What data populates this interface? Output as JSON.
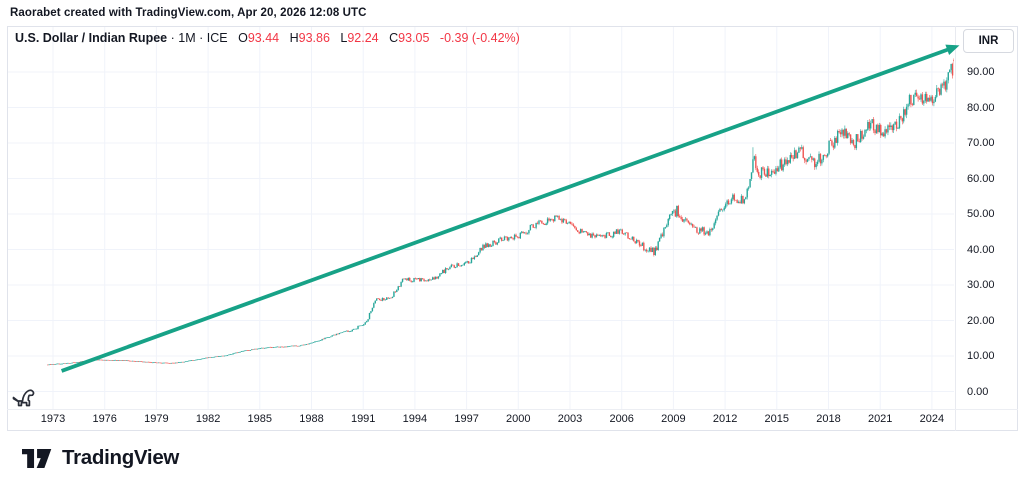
{
  "attribution": "Raorabet created with TradingView.com, Apr 20, 2026 12:08 UTC",
  "header": {
    "symbol": "U.S. Dollar / Indian Rupee",
    "dot": "·",
    "interval": "1M",
    "exchange": "ICE",
    "open_label": "O",
    "open_value": "93.44",
    "high_label": "H",
    "high_value": "93.86",
    "low_label": "L",
    "low_value": "92.24",
    "close_label": "C",
    "close_value": "93.05",
    "change_text": "-0.39 (-0.42%)"
  },
  "price_scale": {
    "currency_button": "INR"
  },
  "footer": {
    "brand": "TradingView"
  },
  "colors": {
    "up": "#26a69a",
    "down": "#ef5350",
    "arrow": "#17a287",
    "grid": "#f0f3fa",
    "border": "#e0e3eb",
    "text": "#131722",
    "value_red": "#f23645"
  },
  "chart_data": {
    "type": "candlestick",
    "title": "U.S. Dollar / Indian Rupee, 1M, ICE",
    "ylabel": "INR per USD",
    "x_visible_range": [
      1972.7,
      2025.31
    ],
    "ylim": [
      0,
      97
    ],
    "y_ticks": [
      0,
      10,
      20,
      30,
      40,
      50,
      60,
      70,
      80,
      90
    ],
    "x_ticks": [
      1973,
      1976,
      1979,
      1982,
      1985,
      1988,
      1991,
      1994,
      1997,
      2000,
      2003,
      2006,
      2009,
      2012,
      2015,
      2018,
      2021,
      2024
    ],
    "grid": true,
    "keyframes": [
      [
        1972.7,
        7.5
      ],
      [
        1974.0,
        8.0
      ],
      [
        1975.5,
        8.9
      ],
      [
        1977.0,
        8.75
      ],
      [
        1978.5,
        8.2
      ],
      [
        1980.0,
        7.9
      ],
      [
        1981.0,
        8.7
      ],
      [
        1982.0,
        9.5
      ],
      [
        1983.0,
        10.1
      ],
      [
        1984.0,
        11.4
      ],
      [
        1985.5,
        12.4
      ],
      [
        1986.5,
        12.6
      ],
      [
        1987.5,
        13.0
      ],
      [
        1988.5,
        14.5
      ],
      [
        1989.5,
        16.2
      ],
      [
        1990.5,
        17.5
      ],
      [
        1991.2,
        19.7
      ],
      [
        1991.7,
        25.8
      ],
      [
        1992.6,
        26.2
      ],
      [
        1993.3,
        31.4
      ],
      [
        1995.0,
        31.4
      ],
      [
        1996.0,
        35.0
      ],
      [
        1997.0,
        35.9
      ],
      [
        1998.0,
        41.0
      ],
      [
        1999.0,
        42.6
      ],
      [
        2000.0,
        43.7
      ],
      [
        2001.0,
        47.0
      ],
      [
        2002.3,
        48.9
      ],
      [
        2003.0,
        46.8
      ],
      [
        2004.0,
        44.2
      ],
      [
        2005.0,
        43.6
      ],
      [
        2006.0,
        45.3
      ],
      [
        2007.0,
        41.5
      ],
      [
        2007.9,
        39.4
      ],
      [
        2008.8,
        48.8
      ],
      [
        2009.2,
        51.0
      ],
      [
        2010.0,
        46.2
      ],
      [
        2011.0,
        44.8
      ],
      [
        2011.9,
        52.3
      ],
      [
        2012.5,
        54.6
      ],
      [
        2013.2,
        54.3
      ],
      [
        2013.65,
        66.0
      ],
      [
        2014.0,
        61.8
      ],
      [
        2015.0,
        62.8
      ],
      [
        2016.2,
        67.8
      ],
      [
        2017.3,
        64.6
      ],
      [
        2018.8,
        73.3
      ],
      [
        2019.5,
        69.8
      ],
      [
        2020.3,
        75.6
      ],
      [
        2021.0,
        73.2
      ],
      [
        2021.9,
        74.9
      ],
      [
        2022.8,
        82.3
      ],
      [
        2023.5,
        82.4
      ],
      [
        2024.3,
        83.5
      ],
      [
        2024.8,
        86.3
      ],
      [
        2025.05,
        89.0
      ],
      [
        2025.31,
        93.2
      ]
    ],
    "spikes": [
      {
        "t": 2013.65,
        "high": 68.8
      }
    ],
    "last_candle": {
      "open": 93.44,
      "high": 93.86,
      "low": 92.24,
      "close": 93.05
    },
    "trend_arrow": {
      "from_year": 1973.5,
      "from_price": 5.8,
      "to_year": 2025.6,
      "to_price": 97.5
    },
    "legend_position": "none"
  }
}
